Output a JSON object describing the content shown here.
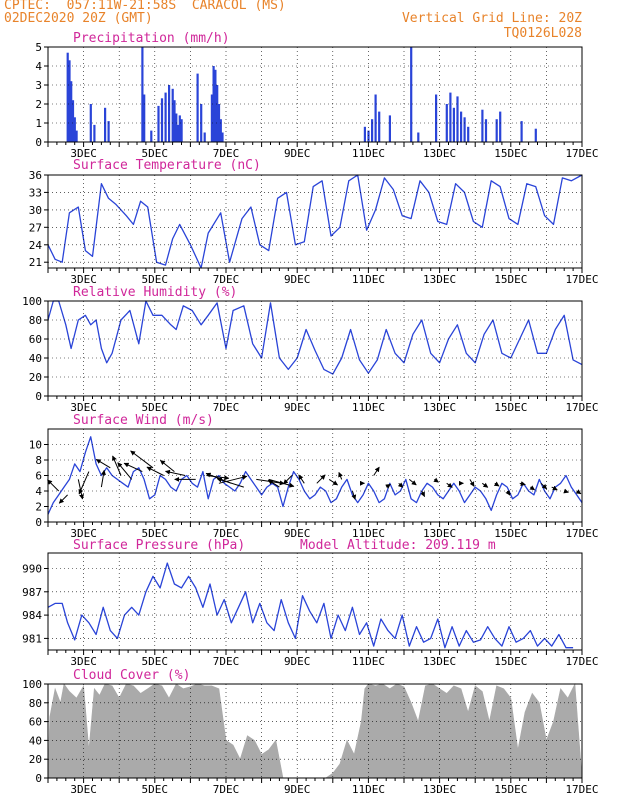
{
  "header": {
    "line1": "CPTEC:  057:11W-21:58S  CARACOL (MS)",
    "line2": "02DEC2020 20Z (GMT)",
    "right1": "Vertical Grid Line: 20Z",
    "right2": "TQ0126L028"
  },
  "colors": {
    "header": "#e8832a",
    "title": "#d0279a",
    "line": "#2a44d8",
    "cloud": "#aaaaaa"
  },
  "chart_data": [
    {
      "type": "bar",
      "title": "Precipitation (mm/h)",
      "xlim": [
        2.0,
        17.0
      ],
      "ylim": [
        0,
        5
      ],
      "yticks": [
        0,
        1,
        2,
        3,
        4,
        5
      ],
      "x_ticks": [
        3,
        5,
        7,
        9,
        11,
        13,
        15,
        17
      ],
      "x_tick_labels": [
        "3DEC",
        "5DEC",
        "7DEC",
        "9DEC",
        "11DEC",
        "13DEC",
        "15DEC",
        "17DEC"
      ],
      "grid": true,
      "x": [
        2.55,
        2.6,
        2.65,
        2.7,
        2.75,
        2.8,
        3.2,
        3.3,
        3.6,
        3.7,
        4.65,
        4.7,
        4.9,
        5.1,
        5.2,
        5.3,
        5.4,
        5.5,
        5.55,
        5.6,
        5.65,
        5.7,
        5.75,
        6.2,
        6.3,
        6.4,
        6.6,
        6.65,
        6.7,
        6.75,
        6.8,
        6.85,
        6.9,
        10.9,
        11.0,
        11.1,
        11.2,
        11.3,
        11.6,
        12.2,
        12.4,
        12.9,
        13.2,
        13.3,
        13.4,
        13.5,
        13.6,
        13.7,
        13.8,
        14.2,
        14.3,
        14.6,
        14.7,
        15.3,
        15.7
      ],
      "values": [
        4.7,
        4.3,
        3.2,
        2.2,
        1.3,
        0.6,
        2.0,
        0.9,
        1.8,
        1.1,
        5.0,
        2.5,
        0.6,
        1.9,
        2.3,
        2.6,
        3.0,
        2.8,
        2.2,
        1.5,
        0.9,
        1.4,
        1.2,
        3.6,
        2.0,
        0.5,
        2.5,
        4.0,
        3.8,
        3.0,
        2.0,
        1.2,
        0.5,
        0.8,
        0.6,
        1.2,
        2.5,
        1.6,
        1.4,
        5.0,
        0.5,
        2.5,
        2.0,
        2.6,
        1.8,
        2.4,
        1.6,
        1.3,
        0.8,
        1.7,
        1.2,
        1.2,
        1.6,
        1.1,
        0.7
      ]
    },
    {
      "type": "line",
      "title": "Surface Temperature (nC)",
      "xlim": [
        2.0,
        17.0
      ],
      "ylim": [
        20,
        36
      ],
      "yticks": [
        21,
        24,
        27,
        30,
        33,
        36
      ],
      "x_ticks": [
        3,
        5,
        7,
        9,
        11,
        13,
        15,
        17
      ],
      "x_tick_labels": [
        "3DEC",
        "5DEC",
        "7DEC",
        "9DEC",
        "11DEC",
        "13DEC",
        "15DEC",
        "17DEC"
      ],
      "grid": true,
      "x": [
        2.0,
        2.2,
        2.4,
        2.6,
        2.85,
        3.05,
        3.25,
        3.5,
        3.7,
        3.9,
        4.2,
        4.4,
        4.6,
        4.8,
        5.05,
        5.3,
        5.5,
        5.7,
        6.0,
        6.3,
        6.5,
        6.85,
        7.1,
        7.45,
        7.7,
        7.95,
        8.2,
        8.45,
        8.7,
        8.95,
        9.2,
        9.45,
        9.7,
        9.95,
        10.2,
        10.45,
        10.7,
        10.95,
        11.2,
        11.45,
        11.7,
        11.95,
        12.2,
        12.45,
        12.7,
        12.95,
        13.2,
        13.45,
        13.7,
        13.95,
        14.2,
        14.45,
        14.7,
        14.95,
        15.2,
        15.45,
        15.7,
        15.95,
        16.2,
        16.45,
        16.7,
        17.0
      ],
      "values": [
        24.0,
        21.5,
        21.0,
        29.5,
        30.5,
        23.0,
        22.0,
        34.5,
        32.0,
        31.0,
        29.0,
        27.5,
        31.5,
        30.5,
        21.0,
        20.5,
        25.0,
        27.5,
        24.0,
        20.0,
        26.0,
        29.5,
        21.0,
        28.5,
        30.5,
        24.0,
        23.0,
        32.0,
        33.0,
        24.0,
        24.5,
        34.0,
        35.0,
        25.5,
        27.0,
        35.0,
        36.0,
        26.5,
        30.0,
        35.5,
        33.5,
        29.0,
        28.5,
        35.0,
        33.0,
        28.0,
        27.5,
        34.5,
        33.0,
        28.0,
        27.0,
        35.0,
        34.0,
        28.5,
        27.5,
        34.5,
        34.0,
        29.0,
        27.5,
        35.5,
        35.0,
        36.0
      ]
    },
    {
      "type": "line",
      "title": "Relative Humidity (%)",
      "xlim": [
        2.0,
        17.0
      ],
      "ylim": [
        0,
        100
      ],
      "yticks": [
        0,
        20,
        40,
        60,
        80,
        100
      ],
      "x_ticks": [
        3,
        5,
        7,
        9,
        11,
        13,
        15,
        17
      ],
      "x_tick_labels": [
        "3DEC",
        "5DEC",
        "7DEC",
        "9DEC",
        "11DEC",
        "13DEC",
        "15DEC",
        "17DEC"
      ],
      "grid": true,
      "x": [
        2.0,
        2.15,
        2.3,
        2.5,
        2.65,
        2.85,
        3.05,
        3.2,
        3.35,
        3.5,
        3.65,
        3.8,
        4.05,
        4.3,
        4.55,
        4.75,
        4.95,
        5.2,
        5.45,
        5.6,
        5.8,
        6.05,
        6.3,
        6.5,
        6.75,
        7.0,
        7.2,
        7.5,
        7.75,
        8.0,
        8.25,
        8.5,
        8.75,
        9.0,
        9.25,
        9.5,
        9.75,
        10.0,
        10.25,
        10.5,
        10.75,
        11.0,
        11.25,
        11.5,
        11.75,
        12.0,
        12.25,
        12.5,
        12.75,
        13.0,
        13.25,
        13.5,
        13.75,
        14.0,
        14.25,
        14.5,
        14.75,
        15.0,
        15.25,
        15.5,
        15.75,
        16.0,
        16.25,
        16.5,
        16.75,
        17.0
      ],
      "values": [
        80,
        100,
        100,
        75,
        50,
        80,
        85,
        75,
        80,
        50,
        35,
        45,
        80,
        90,
        55,
        100,
        85,
        85,
        75,
        70,
        95,
        90,
        75,
        85,
        98,
        50,
        90,
        95,
        55,
        40,
        98,
        40,
        28,
        40,
        70,
        48,
        28,
        23,
        40,
        70,
        38,
        24,
        38,
        70,
        45,
        35,
        65,
        80,
        45,
        35,
        60,
        75,
        45,
        35,
        65,
        80,
        45,
        40,
        60,
        80,
        45,
        45,
        70,
        85,
        38,
        33
      ]
    },
    {
      "type": "line",
      "title": "Surface Wind (m/s)",
      "xlim": [
        2.0,
        17.0
      ],
      "ylim": [
        0,
        12
      ],
      "yticks": [
        0,
        2,
        4,
        6,
        8,
        10
      ],
      "x_ticks": [
        3,
        5,
        7,
        9,
        11,
        13,
        15,
        17
      ],
      "x_tick_labels": [
        "3DEC",
        "5DEC",
        "7DEC",
        "9DEC",
        "11DEC",
        "13DEC",
        "15DEC",
        "17DEC"
      ],
      "grid": true,
      "x": [
        2.0,
        2.15,
        2.3,
        2.45,
        2.6,
        2.75,
        2.9,
        3.05,
        3.2,
        3.35,
        3.5,
        3.65,
        3.8,
        3.95,
        4.1,
        4.25,
        4.4,
        4.55,
        4.7,
        4.85,
        5.0,
        5.15,
        5.3,
        5.45,
        5.6,
        5.75,
        5.9,
        6.05,
        6.2,
        6.35,
        6.5,
        6.65,
        6.8,
        6.95,
        7.1,
        7.25,
        7.4,
        7.55,
        7.7,
        7.85,
        8.0,
        8.15,
        8.3,
        8.45,
        8.6,
        8.75,
        8.9,
        9.05,
        9.2,
        9.35,
        9.5,
        9.65,
        9.8,
        9.95,
        10.1,
        10.25,
        10.4,
        10.55,
        10.7,
        10.85,
        11.0,
        11.15,
        11.3,
        11.45,
        11.6,
        11.75,
        11.9,
        12.05,
        12.2,
        12.35,
        12.5,
        12.65,
        12.8,
        12.95,
        13.1,
        13.25,
        13.4,
        13.55,
        13.7,
        13.85,
        14.0,
        14.15,
        14.3,
        14.45,
        14.6,
        14.75,
        14.9,
        15.05,
        15.2,
        15.35,
        15.5,
        15.65,
        15.8,
        15.95,
        16.1,
        16.25,
        16.4,
        16.55,
        16.7,
        16.85,
        17.0
      ],
      "values": [
        1.0,
        2.5,
        3.5,
        4.5,
        5.5,
        7.5,
        6.5,
        9.0,
        11.0,
        7.5,
        6.0,
        7.0,
        6.0,
        5.5,
        5.0,
        4.5,
        6.5,
        7.0,
        5.5,
        3.0,
        3.5,
        6.0,
        5.5,
        4.5,
        4.0,
        5.5,
        6.0,
        5.0,
        4.5,
        6.5,
        3.0,
        5.5,
        6.0,
        5.0,
        4.5,
        4.0,
        5.0,
        6.5,
        5.5,
        4.5,
        3.5,
        4.5,
        5.0,
        4.5,
        2.0,
        4.5,
        6.5,
        5.5,
        4.0,
        3.0,
        3.5,
        4.5,
        4.0,
        2.5,
        3.0,
        4.5,
        5.5,
        3.5,
        2.5,
        3.5,
        5.0,
        4.0,
        2.5,
        3.0,
        5.0,
        3.5,
        4.0,
        5.5,
        3.0,
        2.5,
        4.0,
        5.0,
        4.5,
        3.5,
        3.0,
        4.0,
        5.0,
        4.0,
        2.5,
        3.5,
        4.5,
        4.0,
        3.0,
        1.5,
        3.5,
        5.0,
        4.5,
        3.0,
        3.5,
        5.0,
        4.0,
        3.5,
        5.5,
        4.0,
        3.0,
        4.5,
        5.0,
        6.0,
        4.5,
        3.5,
        2.5
      ]
    },
    {
      "type": "line",
      "title": "Surface Pressure (hPa)",
      "subtitle": "Model Altitude: 209.119 m",
      "xlim": [
        2.0,
        17.0
      ],
      "ylim": [
        979.5,
        992
      ],
      "yticks": [
        981,
        984,
        987,
        990
      ],
      "x_ticks": [
        3,
        5,
        7,
        9,
        11,
        13,
        15,
        17
      ],
      "x_tick_labels": [
        "3DEC",
        "5DEC",
        "7DEC",
        "9DEC",
        "11DEC",
        "13DEC",
        "15DEC",
        "17DEC"
      ],
      "grid": true,
      "x": [
        2.0,
        2.2,
        2.4,
        2.55,
        2.75,
        2.95,
        3.15,
        3.35,
        3.55,
        3.75,
        3.95,
        4.15,
        4.35,
        4.55,
        4.75,
        4.95,
        5.15,
        5.35,
        5.55,
        5.75,
        5.95,
        6.15,
        6.35,
        6.55,
        6.75,
        6.95,
        7.15,
        7.35,
        7.55,
        7.75,
        7.95,
        8.15,
        8.35,
        8.55,
        8.75,
        8.95,
        9.15,
        9.35,
        9.55,
        9.75,
        9.95,
        10.15,
        10.35,
        10.55,
        10.75,
        10.95,
        11.15,
        11.35,
        11.55,
        11.75,
        11.95,
        12.15,
        12.35,
        12.55,
        12.75,
        12.95,
        13.15,
        13.35,
        13.55,
        13.75,
        13.95,
        14.15,
        14.35,
        14.55,
        14.75,
        14.95,
        15.15,
        15.35,
        15.55,
        15.75,
        15.95,
        16.15,
        16.35,
        16.55,
        16.75
      ],
      "values": [
        985.0,
        985.5,
        985.5,
        983.0,
        980.8,
        984.0,
        983.0,
        981.5,
        985.0,
        982.0,
        981.0,
        984.0,
        985.0,
        984.0,
        987.0,
        989.0,
        987.5,
        990.7,
        988.0,
        987.5,
        989.0,
        987.5,
        985.0,
        988.0,
        984.0,
        986.0,
        983.0,
        985.0,
        987.0,
        983.0,
        985.5,
        983.0,
        982.0,
        986.0,
        983.0,
        981.0,
        986.5,
        984.5,
        983.0,
        985.5,
        981.0,
        984.0,
        982.0,
        985.0,
        981.5,
        983.0,
        980.0,
        983.5,
        982.0,
        981.0,
        984.0,
        980.0,
        982.5,
        980.5,
        981.0,
        983.5,
        979.8,
        982.5,
        980.0,
        982.0,
        980.5,
        980.8,
        982.5,
        981.0,
        980.0,
        982.5,
        980.5,
        981.0,
        982.0,
        980.0,
        981.0,
        980.0,
        981.5,
        979.8,
        979.8
      ]
    },
    {
      "type": "area",
      "title": "Cloud Cover (%)",
      "xlim": [
        2.0,
        17.0
      ],
      "ylim": [
        0,
        100
      ],
      "yticks": [
        0,
        20,
        40,
        60,
        80,
        100
      ],
      "x_ticks": [
        3,
        5,
        7,
        9,
        11,
        13,
        15,
        17
      ],
      "x_tick_labels": [
        "3DEC",
        "5DEC",
        "7DEC",
        "9DEC",
        "11DEC",
        "13DEC",
        "15DEC",
        "17DEC"
      ],
      "grid": true,
      "x": [
        2.0,
        2.05,
        2.2,
        2.35,
        2.45,
        2.6,
        2.8,
        3.0,
        3.15,
        3.3,
        3.45,
        3.6,
        3.8,
        4.0,
        4.2,
        4.4,
        4.6,
        4.8,
        5.0,
        5.2,
        5.4,
        5.6,
        5.8,
        6.0,
        6.2,
        6.4,
        6.6,
        6.8,
        7.0,
        7.2,
        7.4,
        7.6,
        7.8,
        8.0,
        8.2,
        8.4,
        8.6,
        8.8,
        9.0,
        9.2,
        9.4,
        9.6,
        9.8,
        10.0,
        10.2,
        10.4,
        10.6,
        10.8,
        10.9,
        11.0,
        11.2,
        11.4,
        11.6,
        11.8,
        12.0,
        12.2,
        12.4,
        12.6,
        12.8,
        13.0,
        13.2,
        13.4,
        13.6,
        13.8,
        14.0,
        14.2,
        14.4,
        14.6,
        14.8,
        15.0,
        15.2,
        15.4,
        15.6,
        15.8,
        16.0,
        16.2,
        16.4,
        16.6,
        16.8,
        17.0
      ],
      "values": [
        0,
        65,
        95,
        80,
        100,
        92,
        85,
        98,
        30,
        95,
        88,
        100,
        98,
        85,
        100,
        98,
        90,
        95,
        100,
        98,
        85,
        100,
        95,
        97,
        100,
        98,
        98,
        95,
        40,
        35,
        20,
        45,
        40,
        25,
        30,
        40,
        0,
        0,
        0,
        0,
        0,
        0,
        0,
        5,
        15,
        40,
        25,
        60,
        95,
        100,
        98,
        100,
        95,
        100,
        97,
        80,
        60,
        98,
        100,
        95,
        90,
        98,
        95,
        70,
        98,
        92,
        60,
        98,
        95,
        85,
        30,
        70,
        90,
        80,
        40,
        60,
        95,
        85,
        100,
        0
      ]
    }
  ],
  "wind_vectors": {
    "x": [
      2.3,
      2.55,
      2.85,
      3.15,
      3.5,
      3.75,
      4.05,
      4.35,
      4.65,
      4.95,
      5.25,
      5.55,
      5.85,
      6.15,
      6.45,
      6.8,
      7.15,
      7.5,
      7.85,
      8.2,
      8.5,
      8.85,
      9.2,
      9.55,
      9.9,
      10.25,
      10.55,
      10.85,
      11.15,
      11.5,
      11.85,
      12.15,
      12.5,
      12.85,
      13.2,
      13.55,
      13.85,
      14.2,
      14.55,
      14.9,
      15.25,
      15.55,
      15.85,
      16.15,
      16.5,
      16.85
    ],
    "y": [
      4.0,
      3.5,
      5.5,
      6.5,
      4.5,
      7.0,
      6.0,
      5.5,
      6.5,
      7.0,
      6.0,
      6.5,
      6.0,
      5.5,
      6.0,
      5.0,
      5.0,
      4.5,
      5.5,
      5.5,
      4.5,
      6.0,
      5.0,
      5.0,
      5.5,
      5.5,
      4.0,
      5.0,
      6.0,
      4.5,
      5.0,
      5.5,
      4.0,
      5.5,
      5.0,
      5.0,
      5.5,
      5.0,
      5.0,
      4.0,
      5.0,
      4.5,
      5.0,
      4.5,
      4.0,
      4.0
    ],
    "u": [
      -0.8,
      -0.6,
      0.3,
      -0.7,
      0.2,
      -1.0,
      -0.6,
      -1.0,
      -1.3,
      -1.6,
      -1.2,
      -1.0,
      -1.4,
      -1.5,
      1.6,
      2.0,
      -1.8,
      -1.9,
      2.0,
      1.8,
      -0.8,
      -0.6,
      -0.4,
      0.6,
      0.6,
      -0.2,
      0.2,
      0.1,
      0.4,
      0.3,
      0.3,
      0.5,
      0.2,
      0.3,
      0.4,
      0.3,
      0.3,
      0.4,
      0.3,
      0.2,
      0.4,
      0.3,
      0.4,
      0.4,
      0.3,
      0.3
    ],
    "v": [
      0.8,
      -0.6,
      -1.4,
      -1.6,
      1.2,
      0.6,
      1.4,
      1.2,
      0.6,
      1.2,
      0.6,
      0.8,
      0.3,
      0.0,
      -0.2,
      0.5,
      0.7,
      0.6,
      -0.3,
      -0.5,
      0.5,
      -0.6,
      0.6,
      0.6,
      -0.4,
      0.5,
      -0.6,
      0.0,
      0.6,
      0.2,
      -0.3,
      -0.4,
      -0.4,
      -0.2,
      -0.3,
      0.0,
      -0.5,
      -0.3,
      -0.2,
      -0.3,
      -0.1,
      -0.2,
      -0.4,
      -0.2,
      -0.1,
      -0.2
    ]
  }
}
